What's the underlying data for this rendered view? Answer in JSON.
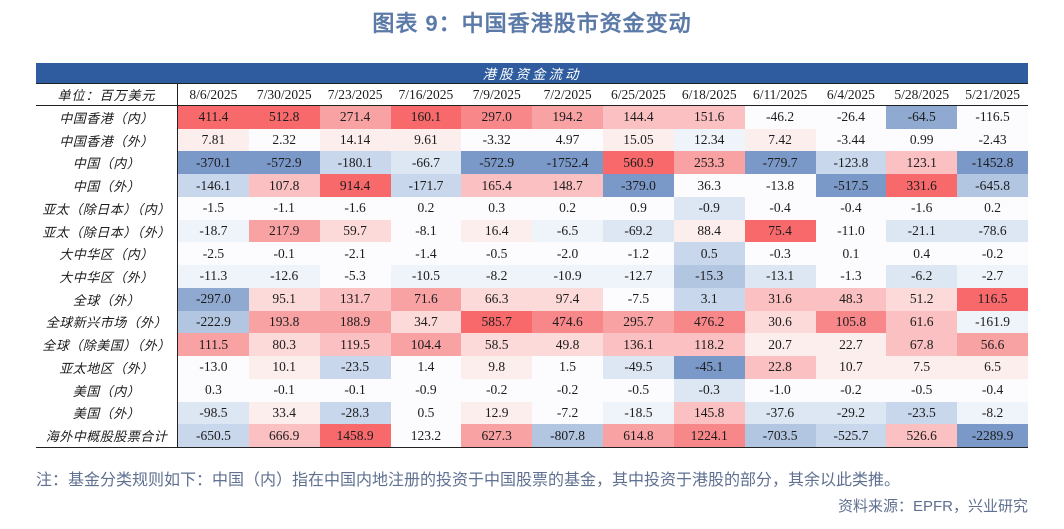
{
  "title": "图表 9：中国香港股市资金变动",
  "note": "注：基金分类规则如下：中国（内）指在中国内地注册的投资于中国股票的基金，其中投资于港股的部分，其余以此类推。",
  "source": "资料来源：EPFR，兴业研究",
  "colors": {
    "title": "#5b7aa8",
    "band_bg": "#2e5c9e",
    "band_text": "#ffffff",
    "note": "#5f7090",
    "border": "#222222",
    "positive_max": "#f8696b",
    "negative_max": "#5a8ac6",
    "midpoint": "#fcfcfe"
  },
  "chart_data": {
    "type": "heatmap",
    "title": "港股资金流动",
    "unit_label": "单位：百万美元",
    "legend_hint": "red = inflow (positive), blue = outflow (negative)",
    "columns": [
      "8/6/2025",
      "7/30/2025",
      "7/23/2025",
      "7/16/2025",
      "7/9/2025",
      "7/2/2025",
      "6/25/2025",
      "6/18/2025",
      "6/11/2025",
      "6/4/2025",
      "5/28/2025",
      "5/21/2025"
    ],
    "palette": {
      "w": "#fcfcfe",
      "p0": "#fdeeee",
      "r0": "#fddada",
      "r1": "#fbc0c1",
      "r2": "#f9a2a4",
      "r3": "#f8878a",
      "r4": "#f8696b",
      "f": "#eff3fa",
      "b0": "#dde7f3",
      "b1": "#c9d7ec",
      "b2": "#b2c5e1",
      "b3": "#8fa9d1",
      "b4": "#7b99c8"
    },
    "rows": [
      {
        "label": "中国香港（内）",
        "values": [
          "411.4",
          "512.8",
          "271.4",
          "160.1",
          "297.0",
          "194.2",
          "144.4",
          "151.6",
          "-46.2",
          "-26.4",
          "-64.5",
          "-116.5"
        ],
        "colors": [
          "r4",
          "r4",
          "r2",
          "r4",
          "r3",
          "r2",
          "r1",
          "r1",
          "w",
          "w",
          "b3",
          "w"
        ]
      },
      {
        "label": "中国香港（外）",
        "values": [
          "7.81",
          "2.32",
          "14.14",
          "9.61",
          "-3.32",
          "4.97",
          "15.05",
          "12.34",
          "7.42",
          "-3.44",
          "0.99",
          "-2.43"
        ],
        "colors": [
          "p0",
          "w",
          "p0",
          "p0",
          "w",
          "w",
          "p0",
          "f",
          "p0",
          "w",
          "w",
          "w"
        ]
      },
      {
        "label": "中国（内）",
        "values": [
          "-370.1",
          "-572.9",
          "-180.1",
          "-66.7",
          "-572.9",
          "-1752.4",
          "560.9",
          "253.3",
          "-779.7",
          "-123.8",
          "123.1",
          "-1452.8"
        ],
        "colors": [
          "b4",
          "b4",
          "b1",
          "b0",
          "b4",
          "b4",
          "r4",
          "r2",
          "b4",
          "b1",
          "r1",
          "b4"
        ]
      },
      {
        "label": "中国（外）",
        "values": [
          "-146.1",
          "107.8",
          "914.4",
          "-171.7",
          "165.4",
          "148.7",
          "-379.0",
          "36.3",
          "-13.8",
          "-517.5",
          "331.6",
          "-645.8"
        ],
        "colors": [
          "b1",
          "r1",
          "r4",
          "b1",
          "r1",
          "r1",
          "b4",
          "w",
          "w",
          "b4",
          "r4",
          "b2"
        ]
      },
      {
        "label": "亚太（除日本）（内）",
        "values": [
          "-1.5",
          "-1.1",
          "-1.6",
          "0.2",
          "0.3",
          "0.2",
          "0.9",
          "-0.9",
          "-0.4",
          "-0.4",
          "-1.6",
          "0.2"
        ],
        "colors": [
          "w",
          "w",
          "w",
          "w",
          "w",
          "w",
          "w",
          "b0",
          "w",
          "w",
          "w",
          "w"
        ]
      },
      {
        "label": "亚太（除日本）（外）",
        "values": [
          "-18.7",
          "217.9",
          "59.7",
          "-8.1",
          "16.4",
          "-6.5",
          "-69.2",
          "88.4",
          "75.4",
          "-11.0",
          "-21.1",
          "-78.6"
        ],
        "colors": [
          "f",
          "r2",
          "r0",
          "w",
          "p0",
          "f",
          "b0",
          "p0",
          "r4",
          "w",
          "b0",
          "b0"
        ]
      },
      {
        "label": "大中华区（内）",
        "values": [
          "-2.5",
          "-0.1",
          "-2.1",
          "-1.4",
          "-0.5",
          "-2.0",
          "-1.2",
          "0.5",
          "-0.3",
          "0.1",
          "0.4",
          "-0.2"
        ],
        "colors": [
          "w",
          "w",
          "w",
          "w",
          "w",
          "w",
          "w",
          "b1",
          "w",
          "w",
          "w",
          "w"
        ]
      },
      {
        "label": "大中华区（外）",
        "values": [
          "-11.3",
          "-12.6",
          "-5.3",
          "-10.5",
          "-8.2",
          "-10.9",
          "-12.7",
          "-15.3",
          "-13.1",
          "-1.3",
          "-6.2",
          "-2.7"
        ],
        "colors": [
          "f",
          "f",
          "w",
          "f",
          "f",
          "f",
          "f",
          "b2",
          "b0",
          "w",
          "b0",
          "f"
        ]
      },
      {
        "label": "全球（外）",
        "values": [
          "-297.0",
          "95.1",
          "131.7",
          "71.6",
          "66.3",
          "97.4",
          "-7.5",
          "3.1",
          "31.6",
          "48.3",
          "51.2",
          "116.5"
        ],
        "colors": [
          "b3",
          "r0",
          "r1",
          "r2",
          "r0",
          "r0",
          "w",
          "b1",
          "r1",
          "r1",
          "r0",
          "r4"
        ]
      },
      {
        "label": "全球新兴市场（外）",
        "values": [
          "-222.9",
          "193.8",
          "188.9",
          "34.7",
          "585.7",
          "474.6",
          "295.7",
          "476.2",
          "30.6",
          "105.8",
          "61.6",
          "-161.9"
        ],
        "colors": [
          "b2",
          "r2",
          "r2",
          "r0",
          "r4",
          "r3",
          "r2",
          "r3",
          "r0",
          "r3",
          "r1",
          "f"
        ]
      },
      {
        "label": "全球（除美国）（外）",
        "values": [
          "111.5",
          "80.3",
          "119.5",
          "104.4",
          "58.5",
          "49.8",
          "136.1",
          "118.2",
          "20.7",
          "22.7",
          "67.8",
          "56.6"
        ],
        "colors": [
          "r2",
          "r0",
          "r1",
          "r2",
          "r0",
          "r0",
          "r1",
          "r1",
          "p0",
          "p0",
          "r1",
          "r2"
        ]
      },
      {
        "label": "亚太地区（外）",
        "values": [
          "-13.0",
          "10.1",
          "-23.5",
          "1.4",
          "9.8",
          "1.5",
          "-49.5",
          "-45.1",
          "22.8",
          "10.7",
          "7.5",
          "6.5"
        ],
        "colors": [
          "w",
          "p0",
          "b1",
          "w",
          "p0",
          "w",
          "b0",
          "b4",
          "r1",
          "p0",
          "p0",
          "p0"
        ]
      },
      {
        "label": "美国（内）",
        "values": [
          "0.3",
          "-0.1",
          "-0.1",
          "-0.9",
          "-0.2",
          "-0.2",
          "-0.5",
          "-0.3",
          "-1.0",
          "-0.2",
          "-0.5",
          "-0.4"
        ],
        "colors": [
          "w",
          "w",
          "w",
          "w",
          "w",
          "w",
          "w",
          "b0",
          "w",
          "w",
          "w",
          "w"
        ]
      },
      {
        "label": "美国（外）",
        "values": [
          "-98.5",
          "33.4",
          "-28.3",
          "0.5",
          "12.9",
          "-7.2",
          "-18.5",
          "145.8",
          "-37.6",
          "-29.2",
          "-23.5",
          "-8.2"
        ],
        "colors": [
          "b0",
          "p0",
          "b1",
          "w",
          "p0",
          "w",
          "f",
          "r1",
          "b0",
          "b0",
          "b1",
          "f"
        ]
      },
      {
        "label": "海外中概股股票合计",
        "values": [
          "-650.5",
          "666.9",
          "1458.9",
          "123.2",
          "627.3",
          "-807.8",
          "614.8",
          "1224.1",
          "-703.5",
          "-525.7",
          "526.6",
          "-2289.9"
        ],
        "colors": [
          "b1",
          "r1",
          "r4",
          "w",
          "r2",
          "b2",
          "r2",
          "r3",
          "b2",
          "b1",
          "r1",
          "b4"
        ]
      }
    ]
  }
}
